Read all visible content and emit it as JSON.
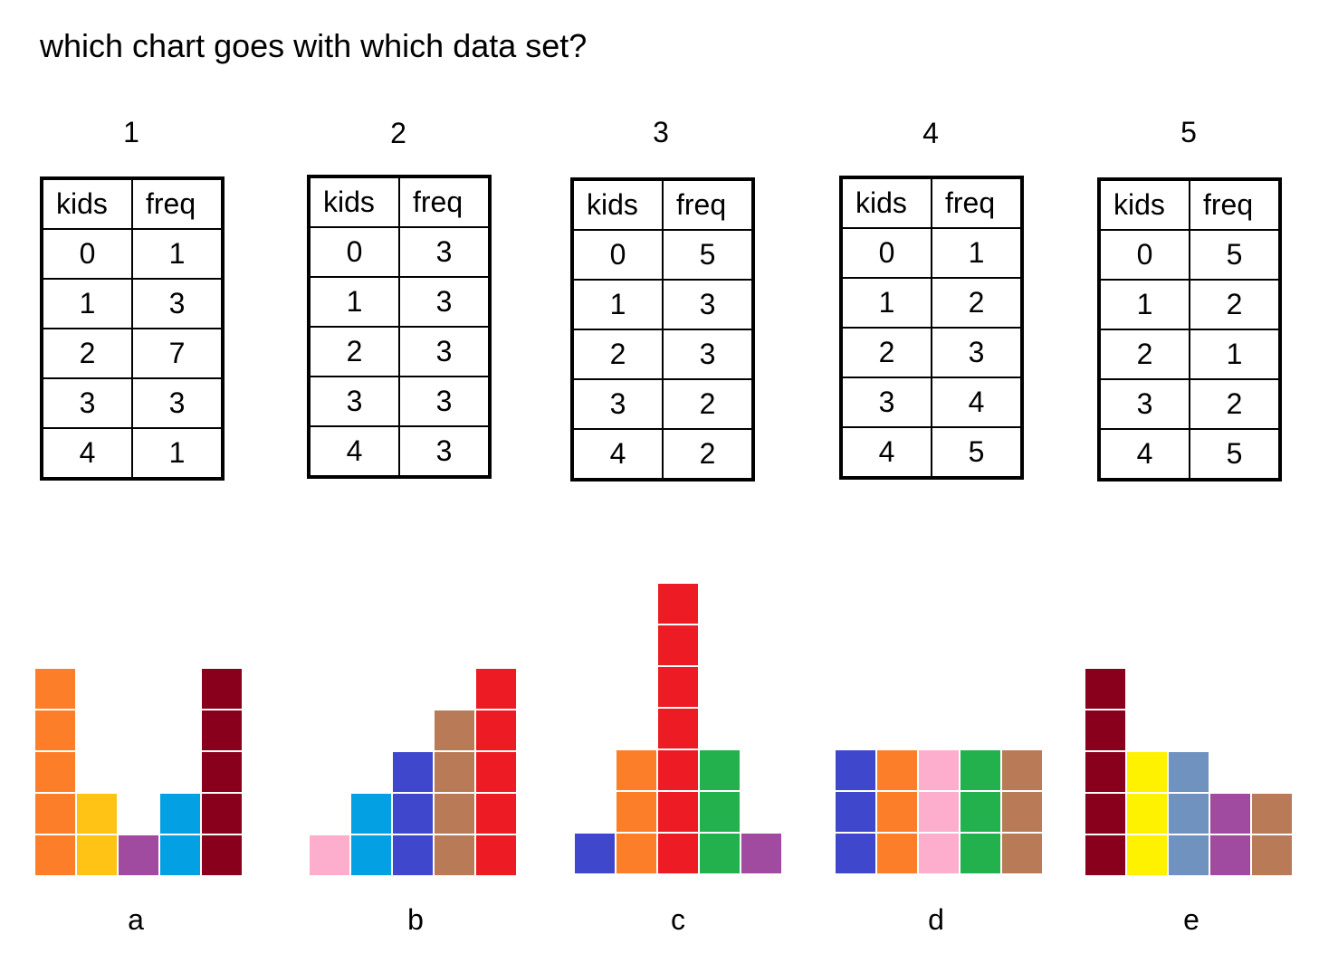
{
  "title": "which chart goes with which data set?",
  "datasets": [
    {
      "number": "1",
      "headers": [
        "kids",
        "freq"
      ],
      "rows": [
        [
          "0",
          "1"
        ],
        [
          "1",
          "3"
        ],
        [
          "2",
          "7"
        ],
        [
          "3",
          "3"
        ],
        [
          "4",
          "1"
        ]
      ]
    },
    {
      "number": "2",
      "headers": [
        "kids",
        "freq"
      ],
      "rows": [
        [
          "0",
          "3"
        ],
        [
          "1",
          "3"
        ],
        [
          "2",
          "3"
        ],
        [
          "3",
          "3"
        ],
        [
          "4",
          "3"
        ]
      ]
    },
    {
      "number": "3",
      "headers": [
        "kids",
        "freq"
      ],
      "rows": [
        [
          "0",
          "5"
        ],
        [
          "1",
          "3"
        ],
        [
          "2",
          "3"
        ],
        [
          "3",
          "2"
        ],
        [
          "4",
          "2"
        ]
      ]
    },
    {
      "number": "4",
      "headers": [
        "kids",
        "freq"
      ],
      "rows": [
        [
          "0",
          "1"
        ],
        [
          "1",
          "2"
        ],
        [
          "2",
          "3"
        ],
        [
          "3",
          "4"
        ],
        [
          "4",
          "5"
        ]
      ]
    },
    {
      "number": "5",
      "headers": [
        "kids",
        "freq"
      ],
      "rows": [
        [
          "0",
          "5"
        ],
        [
          "1",
          "2"
        ],
        [
          "2",
          "1"
        ],
        [
          "3",
          "2"
        ],
        [
          "4",
          "5"
        ]
      ]
    }
  ],
  "charts": [
    {
      "label": "a",
      "columns": [
        5,
        2,
        1,
        2,
        5
      ],
      "colors": [
        "#fd7e28",
        "#fec315",
        "#a04aa0",
        "#03a0e4",
        "#88001b"
      ]
    },
    {
      "label": "b",
      "columns": [
        1,
        2,
        3,
        4,
        5
      ],
      "colors": [
        "#fdaecc",
        "#03a0e4",
        "#3f47cc",
        "#b97a57",
        "#ed1c24"
      ]
    },
    {
      "label": "c",
      "columns": [
        1,
        3,
        7,
        3,
        1
      ],
      "colors": [
        "#3f47cc",
        "#fd7e28",
        "#ed1c24",
        "#22b14c",
        "#a04aa0"
      ]
    },
    {
      "label": "d",
      "columns": [
        3,
        3,
        3,
        3,
        3
      ],
      "colors": [
        "#3f47cc",
        "#fd7e28",
        "#fdaecc",
        "#22b14c",
        "#b97a57"
      ]
    },
    {
      "label": "e",
      "columns": [
        5,
        3,
        3,
        2,
        2
      ],
      "colors": [
        "#88001b",
        "#fff200",
        "#7092be",
        "#a04aa0",
        "#b97a57"
      ]
    }
  ]
}
